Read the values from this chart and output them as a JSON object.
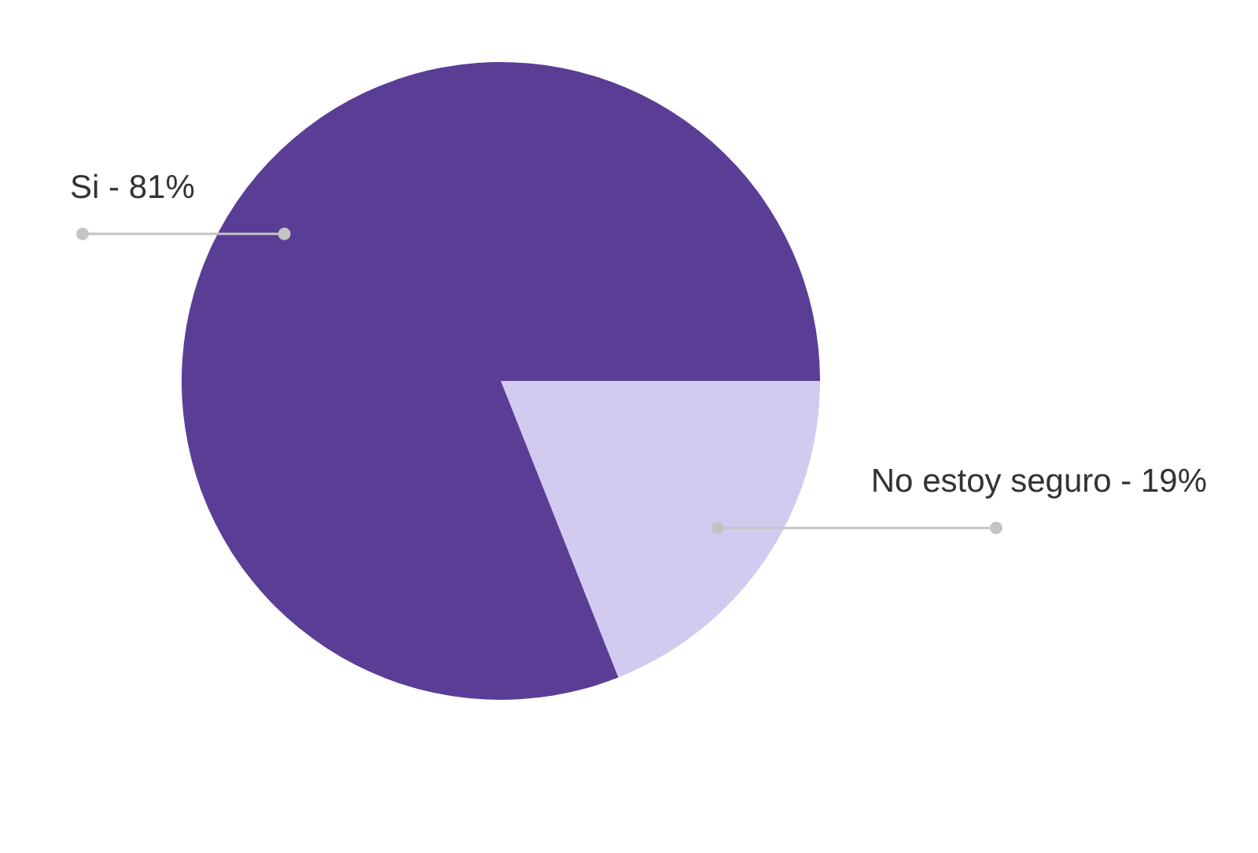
{
  "chart_data": {
    "type": "pie",
    "categories": [
      "No estoy seguro",
      "Si"
    ],
    "values": [
      19,
      81
    ],
    "colors": [
      "#d3cbef",
      "#5a3e96"
    ],
    "value_labels": [
      "19%",
      "81%"
    ]
  }
}
